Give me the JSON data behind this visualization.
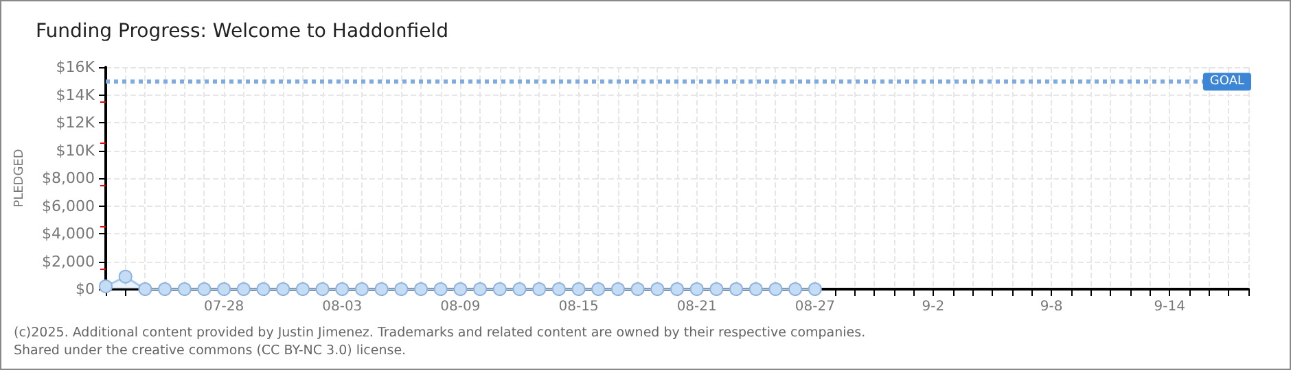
{
  "chart_data": {
    "type": "area",
    "title": "Funding Progress: Welcome to Haddonfield",
    "ylabel": "PLEDGED",
    "x": [
      "--07-22",
      "--07-23",
      "--07-24",
      "--07-25",
      "--07-26",
      "--07-27",
      "--07-28",
      "--07-29",
      "--07-30",
      "--07-31",
      "--08-01",
      "--08-02",
      "--08-03",
      "--08-04",
      "--08-05",
      "--08-06",
      "--08-07",
      "--08-08",
      "--08-09",
      "--08-10",
      "--08-11",
      "--08-12",
      "--08-13",
      "--08-14",
      "--08-15",
      "--08-16",
      "--08-17",
      "--08-18",
      "--08-19",
      "--08-20",
      "--08-21",
      "--08-22",
      "--08-23",
      "--08-24",
      "--08-25",
      "--08-26",
      "--08-27"
    ],
    "series": [
      {
        "color": "#c5dcf5",
        "values": [
          200,
          900,
          0,
          0,
          0,
          0,
          0,
          0,
          0,
          0,
          0,
          0,
          0,
          0,
          0,
          0,
          0,
          0,
          0,
          0,
          0,
          0,
          0,
          0,
          0,
          0,
          0,
          0,
          0,
          0,
          0,
          0,
          0,
          0,
          0,
          0,
          0
        ]
      }
    ],
    "xlim": [
      "--07-22",
      "--09-18"
    ],
    "xticks": [
      {
        "value": "--07-28",
        "label": "07-28"
      },
      {
        "value": "--08-03",
        "label": "08-03"
      },
      {
        "value": "--08-09",
        "label": "08-09"
      },
      {
        "value": "--08-15",
        "label": "08-15"
      },
      {
        "value": "--08-21",
        "label": "08-21"
      },
      {
        "value": "--08-27",
        "label": "08-27"
      },
      {
        "value": "--09-02",
        "label": "9-2"
      },
      {
        "value": "--09-08",
        "label": "9-8"
      },
      {
        "value": "--09-14",
        "label": "9-14"
      }
    ],
    "ylim": [
      0,
      16000
    ],
    "yticks": [
      {
        "value": 0,
        "label": "$0"
      },
      {
        "value": 2000,
        "label": "$2,000"
      },
      {
        "value": 4000,
        "label": "$4,000"
      },
      {
        "value": 6000,
        "label": "$6,000"
      },
      {
        "value": 8000,
        "label": "$8,000"
      },
      {
        "value": 10000,
        "label": "$10K"
      },
      {
        "value": 12000,
        "label": "$12K"
      },
      {
        "value": 14000,
        "label": "$14K"
      },
      {
        "value": 16000,
        "label": "$16K"
      }
    ],
    "ref_lines": [
      {
        "axis": "y",
        "value": 15000,
        "label": "GOAL",
        "color": "#7fabe0",
        "line_style": "dotted"
      }
    ],
    "annotations": [
      "(c)2025. Additional content provided by Justin Jimenez. Trademarks and related content are owned by their respective companies.",
      "Shared under the creative commons (CC BY-NC 3.0) license."
    ],
    "grid": true,
    "marker": "circle"
  }
}
